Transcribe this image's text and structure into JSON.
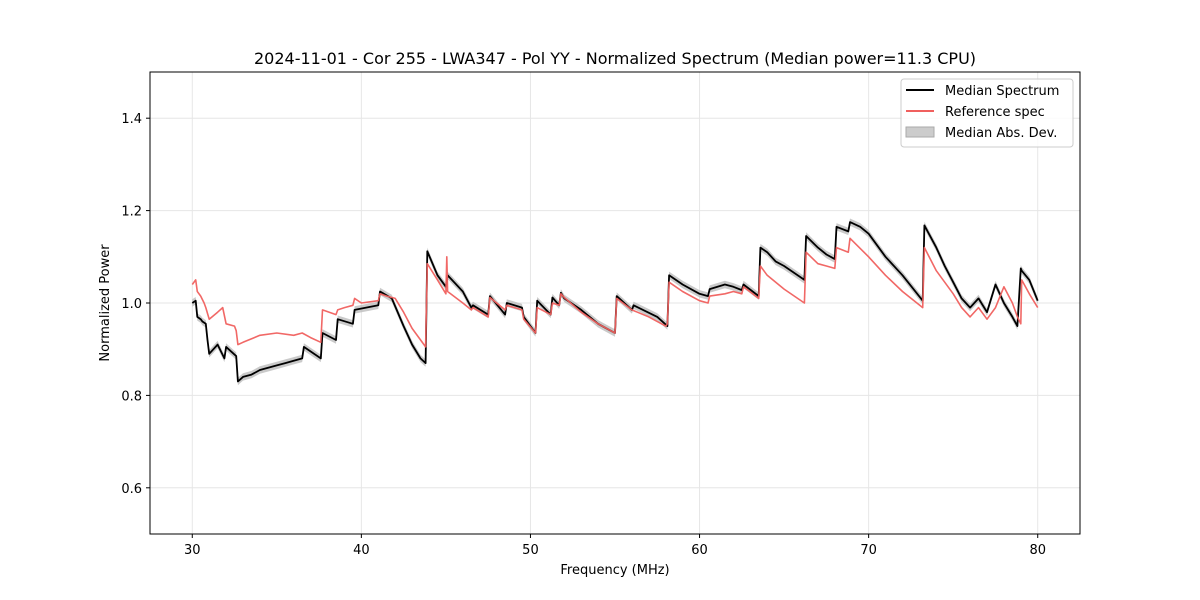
{
  "chart_data": {
    "type": "line",
    "title": "2024-11-01 - Cor 255 - LWA347 - Pol YY - Normalized Spectrum (Median power=11.3 CPU)",
    "xlabel": "Frequency (MHz)",
    "ylabel": "Normalized Power",
    "xlim": [
      27.5,
      82.5
    ],
    "ylim": [
      0.5,
      1.5
    ],
    "xticks": [
      30,
      40,
      50,
      60,
      70,
      80
    ],
    "yticks": [
      0.6,
      0.8,
      1.0,
      1.2,
      1.4
    ],
    "xtick_labels": [
      "30",
      "40",
      "50",
      "60",
      "70",
      "80"
    ],
    "ytick_labels": [
      "0.6",
      "0.8",
      "1.0",
      "1.2",
      "1.4"
    ],
    "grid": true,
    "legend_position": "top-right",
    "legend": [
      "Median Spectrum",
      "Reference spec",
      "Median Abs. Dev."
    ],
    "colors": {
      "median": "#000000",
      "reference": "#f0605e",
      "mad": "#bdbdbd"
    },
    "mad_halfwidth": 0.008,
    "series": [
      {
        "name": "Median Spectrum",
        "x": [
          30.0,
          30.2,
          30.3,
          30.5,
          30.6,
          30.8,
          30.9,
          31.0,
          31.5,
          31.9,
          32.0,
          32.6,
          32.7,
          33.0,
          33.5,
          34.0,
          35.0,
          35.5,
          36.0,
          36.5,
          36.6,
          37.6,
          37.7,
          38.5,
          38.6,
          39.5,
          39.6,
          41.0,
          41.1,
          41.8,
          42.5,
          43.0,
          43.5,
          43.8,
          43.9,
          44.5,
          45.0,
          45.1,
          46.0,
          46.5,
          46.6,
          47.5,
          47.6,
          48.5,
          48.6,
          49.5,
          49.6,
          50.3,
          50.4,
          51.2,
          51.3,
          51.7,
          51.8,
          52.0,
          53.0,
          54.0,
          54.5,
          55.0,
          55.1,
          56.0,
          56.1,
          57.5,
          58.1,
          58.2,
          59.0,
          60.0,
          60.5,
          60.6,
          61.5,
          62.0,
          62.5,
          62.6,
          63.5,
          63.6,
          64.0,
          64.5,
          65.0,
          66.2,
          66.3,
          67.0,
          67.5,
          68.0,
          68.1,
          68.8,
          68.9,
          69.5,
          70.0,
          71.0,
          72.0,
          73.2,
          73.3,
          74.0,
          74.5,
          75.0,
          75.5,
          76.0,
          76.5,
          77.0,
          77.5,
          78.0,
          78.5,
          78.8,
          79.0,
          79.05,
          79.5,
          80.0
        ],
        "values": [
          1.0,
          1.005,
          0.97,
          0.965,
          0.96,
          0.955,
          0.92,
          0.89,
          0.91,
          0.88,
          0.905,
          0.885,
          0.83,
          0.84,
          0.845,
          0.855,
          0.865,
          0.87,
          0.875,
          0.88,
          0.905,
          0.88,
          0.935,
          0.92,
          0.965,
          0.955,
          0.985,
          0.995,
          1.025,
          1.01,
          0.95,
          0.91,
          0.88,
          0.87,
          1.112,
          1.06,
          1.035,
          1.06,
          1.025,
          0.99,
          0.995,
          0.975,
          1.015,
          0.975,
          1.0,
          0.99,
          0.97,
          0.935,
          1.005,
          0.975,
          1.012,
          0.995,
          1.022,
          1.01,
          0.985,
          0.955,
          0.945,
          0.935,
          1.015,
          0.985,
          0.995,
          0.97,
          0.95,
          1.06,
          1.04,
          1.02,
          1.015,
          1.03,
          1.04,
          1.035,
          1.028,
          1.04,
          1.015,
          1.12,
          1.11,
          1.09,
          1.08,
          1.05,
          1.145,
          1.12,
          1.105,
          1.095,
          1.165,
          1.155,
          1.175,
          1.165,
          1.15,
          1.1,
          1.06,
          1.005,
          1.168,
          1.12,
          1.08,
          1.045,
          1.01,
          0.99,
          1.01,
          0.98,
          1.04,
          1.0,
          0.97,
          0.95,
          1.075,
          1.07,
          1.05,
          1.005
        ]
      },
      {
        "name": "Reference spec",
        "x": [
          30.0,
          30.2,
          30.3,
          30.5,
          30.7,
          30.8,
          31.0,
          31.5,
          31.8,
          32.0,
          32.5,
          32.6,
          32.7,
          33.0,
          34.0,
          35.0,
          36.0,
          36.5,
          37.0,
          37.6,
          37.7,
          38.5,
          38.6,
          39.0,
          39.5,
          39.6,
          40.0,
          41.0,
          41.1,
          41.5,
          42.0,
          42.5,
          43.0,
          43.8,
          43.9,
          44.5,
          45.0,
          45.05,
          45.1,
          46.0,
          46.5,
          46.6,
          47.5,
          47.6,
          48.5,
          48.6,
          49.5,
          49.6,
          50.3,
          50.4,
          51.2,
          51.3,
          51.7,
          51.8,
          52.0,
          53.0,
          54.0,
          55.0,
          55.1,
          56.0,
          57.0,
          58.0,
          58.1,
          58.2,
          59.0,
          60.0,
          60.5,
          60.6,
          61.5,
          62.0,
          62.5,
          62.6,
          63.5,
          63.6,
          64.0,
          65.0,
          66.2,
          66.3,
          67.0,
          67.5,
          68.0,
          68.1,
          68.8,
          68.9,
          70.0,
          71.0,
          72.0,
          73.2,
          73.3,
          74.0,
          75.0,
          75.5,
          76.0,
          76.5,
          77.0,
          77.5,
          78.0,
          78.5,
          78.8,
          79.0,
          79.05,
          79.5,
          80.0
        ],
        "values": [
          1.04,
          1.05,
          1.025,
          1.015,
          1.0,
          0.99,
          0.965,
          0.98,
          0.99,
          0.955,
          0.95,
          0.94,
          0.91,
          0.915,
          0.93,
          0.935,
          0.93,
          0.935,
          0.925,
          0.915,
          0.985,
          0.975,
          0.985,
          0.99,
          0.995,
          1.01,
          1.0,
          1.005,
          1.02,
          1.015,
          1.01,
          0.98,
          0.945,
          0.905,
          1.085,
          1.05,
          1.02,
          1.1,
          1.025,
          1.0,
          0.985,
          0.99,
          0.97,
          1.012,
          0.985,
          0.995,
          0.985,
          0.965,
          0.935,
          0.99,
          0.975,
          1.0,
          0.995,
          1.02,
          1.012,
          0.98,
          0.955,
          0.935,
          1.01,
          0.985,
          0.97,
          0.95,
          0.955,
          1.045,
          1.025,
          1.005,
          1.0,
          1.015,
          1.02,
          1.025,
          1.02,
          1.035,
          1.01,
          1.08,
          1.06,
          1.03,
          1.0,
          1.11,
          1.085,
          1.08,
          1.075,
          1.12,
          1.11,
          1.14,
          1.1,
          1.06,
          1.025,
          0.99,
          1.12,
          1.07,
          1.02,
          0.99,
          0.97,
          0.99,
          0.965,
          0.99,
          1.035,
          1.0,
          0.97,
          0.955,
          1.05,
          1.02,
          0.99
        ]
      }
    ]
  }
}
